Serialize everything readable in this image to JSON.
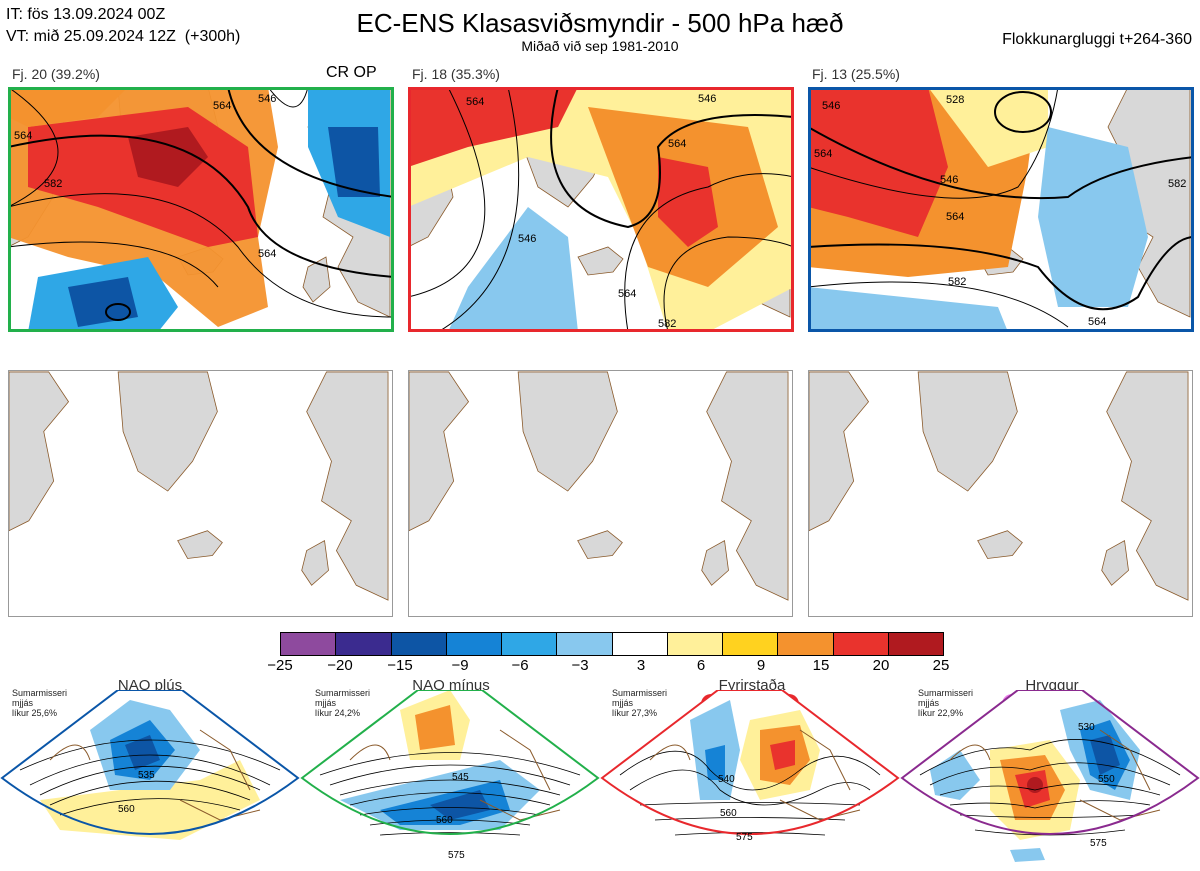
{
  "header": {
    "left_line1": "IT: fös 13.09.2024 00Z",
    "left_line2": "VT: mið 25.09.2024 12Z  (+300h)",
    "title": "EC-ENS Klasasviðsmyndir - 500 hPa hæð",
    "subtitle": "Miðað við sep 1981-2010",
    "right": "Flokkunargluggi t+264-360"
  },
  "clusters": [
    {
      "label": "Fj. 20 (39.2%)",
      "flag": "CR OP",
      "frame_color": "#22b04b",
      "contours": [
        "564",
        "582",
        "546",
        "564",
        "564"
      ]
    },
    {
      "label": "Fj. 18 (35.3%)",
      "flag": "",
      "frame_color": "#e8282d",
      "contours": [
        "564",
        "546",
        "546",
        "564",
        "564",
        "582"
      ]
    },
    {
      "label": "Fj. 13 (25.5%)",
      "flag": "",
      "frame_color": "#0a56a8",
      "contours": [
        "546",
        "528",
        "546",
        "564",
        "564",
        "582",
        "564",
        "582"
      ]
    }
  ],
  "colorbar": {
    "ticks": [
      "−25",
      "−20",
      "−15",
      "−9",
      "−6",
      "−3",
      "3",
      "6",
      "9",
      "15",
      "20",
      "25"
    ],
    "colors": [
      "#8e4a9e",
      "#3b2b8f",
      "#0d55a5",
      "#1583d6",
      "#2fa7e6",
      "#88c8ee",
      "#ffffff",
      "#fff09a",
      "#ffd21f",
      "#f4922e",
      "#e9332d",
      "#b01a1f"
    ]
  },
  "regimes": [
    {
      "name": "NAO plús",
      "note_line1": "Sumarmisseri",
      "note_line2": "mjjás",
      "note_line3": "líkur 25,6%",
      "frame_color": "#0a56a8",
      "dot_color": "#0a56a8",
      "contours": [
        "535",
        "560"
      ]
    },
    {
      "name": "NAO mínus",
      "note_line1": "Sumarmisseri",
      "note_line2": "mjjás",
      "note_line3": "líkur 24,2%",
      "frame_color": "#22b04b",
      "dot_color": "#22b04b",
      "contours": [
        "545",
        "560",
        "575"
      ]
    },
    {
      "name": "Fyrirstaða",
      "note_line1": "Sumarmisseri",
      "note_line2": "mjjás",
      "note_line3": "líkur 27,3%",
      "frame_color": "#e8282d",
      "dot_color": "#e8282d",
      "contours": [
        "540",
        "560",
        "575"
      ]
    },
    {
      "name": "Hryggur",
      "note_line1": "Sumarmisseri",
      "note_line2": "mjjás",
      "note_line3": "líkur 22,9%",
      "frame_color": "#8a2a8f",
      "dot_color": "#e87ae8",
      "contours": [
        "530",
        "550",
        "575"
      ]
    }
  ]
}
